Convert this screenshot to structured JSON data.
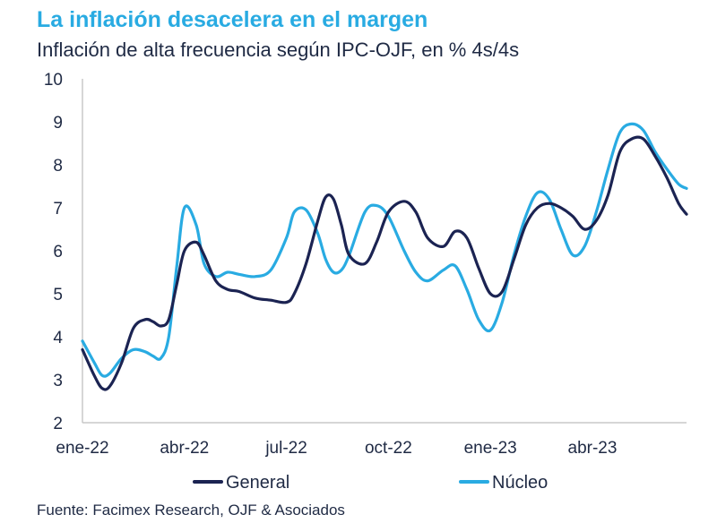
{
  "chart_data": {
    "type": "line",
    "title": "La inflación desacelera en el margen",
    "subtitle": "Inflación de alta frecuencia según IPC-OJF, en % 4s/4s",
    "source": "Fuente: Facimex Research, OJF & Asociados",
    "xlabel": "",
    "ylabel": "",
    "ylim": [
      2,
      10
    ],
    "y_ticks": [
      "2",
      "3",
      "4",
      "5",
      "6",
      "7",
      "8",
      "9",
      "10"
    ],
    "x_tick_labels": [
      "ene-22",
      "abr-22",
      "jul-22",
      "oct-22",
      "ene-23",
      "abr-23"
    ],
    "x_tick_positions": [
      0,
      13,
      26,
      39,
      52,
      65
    ],
    "x_range": [
      0,
      77
    ],
    "grid": false,
    "legend_position": "bottom",
    "colors": {
      "General": "#1b2352",
      "Núcleo": "#29abe2"
    },
    "series": [
      {
        "name": "General",
        "x": [
          0,
          1.5,
          2.5,
          3.5,
          5,
          6.5,
          8,
          9,
          10,
          11,
          12,
          13,
          14.5,
          15.5,
          17,
          18.5,
          20,
          22,
          24,
          26,
          27,
          28.5,
          30,
          31,
          32,
          33,
          34,
          36,
          37.5,
          39,
          41,
          42.5,
          44,
          46,
          47.5,
          49,
          50.5,
          52,
          53.5,
          55,
          56.5,
          58,
          59.5,
          61,
          62.5,
          64,
          65.5,
          67,
          68.5,
          70,
          71.5,
          73,
          74.5,
          76,
          77
        ],
        "values": [
          3.7,
          3.1,
          2.8,
          2.85,
          3.4,
          4.2,
          4.4,
          4.35,
          4.25,
          4.4,
          5.2,
          6.0,
          6.2,
          5.9,
          5.3,
          5.1,
          5.05,
          4.9,
          4.85,
          4.8,
          5.0,
          5.7,
          6.7,
          7.25,
          7.2,
          6.6,
          5.9,
          5.7,
          6.2,
          6.9,
          7.15,
          6.9,
          6.3,
          6.1,
          6.45,
          6.3,
          5.6,
          5.0,
          5.05,
          5.8,
          6.6,
          7.0,
          7.1,
          7.0,
          6.8,
          6.5,
          6.7,
          7.3,
          8.3,
          8.6,
          8.6,
          8.2,
          7.7,
          7.1,
          6.85
        ]
      },
      {
        "name": "Núcleo",
        "x": [
          0,
          1.5,
          2.5,
          3.5,
          5,
          6.5,
          8,
          9,
          10,
          11,
          12,
          13,
          14.5,
          15.5,
          17,
          18.5,
          20,
          22,
          24,
          26,
          27,
          28.5,
          30,
          31,
          32,
          33,
          34,
          36,
          37.5,
          39,
          41,
          42.5,
          44,
          46,
          47.5,
          49,
          50.5,
          52,
          53.5,
          55,
          56.5,
          58,
          59.5,
          61,
          62.5,
          64,
          65.5,
          67,
          68.5,
          70,
          71.5,
          73,
          74.5,
          76,
          77
        ],
        "values": [
          3.9,
          3.4,
          3.1,
          3.15,
          3.5,
          3.7,
          3.65,
          3.55,
          3.5,
          4.0,
          5.6,
          7.0,
          6.6,
          5.7,
          5.4,
          5.5,
          5.45,
          5.4,
          5.55,
          6.3,
          6.9,
          6.95,
          6.4,
          5.8,
          5.5,
          5.55,
          5.9,
          6.9,
          7.05,
          6.8,
          6.0,
          5.5,
          5.3,
          5.55,
          5.65,
          5.1,
          4.4,
          4.15,
          4.8,
          5.9,
          6.8,
          7.35,
          7.2,
          6.5,
          5.9,
          6.1,
          6.9,
          7.9,
          8.75,
          8.95,
          8.8,
          8.3,
          7.9,
          7.55,
          7.45
        ]
      }
    ]
  }
}
